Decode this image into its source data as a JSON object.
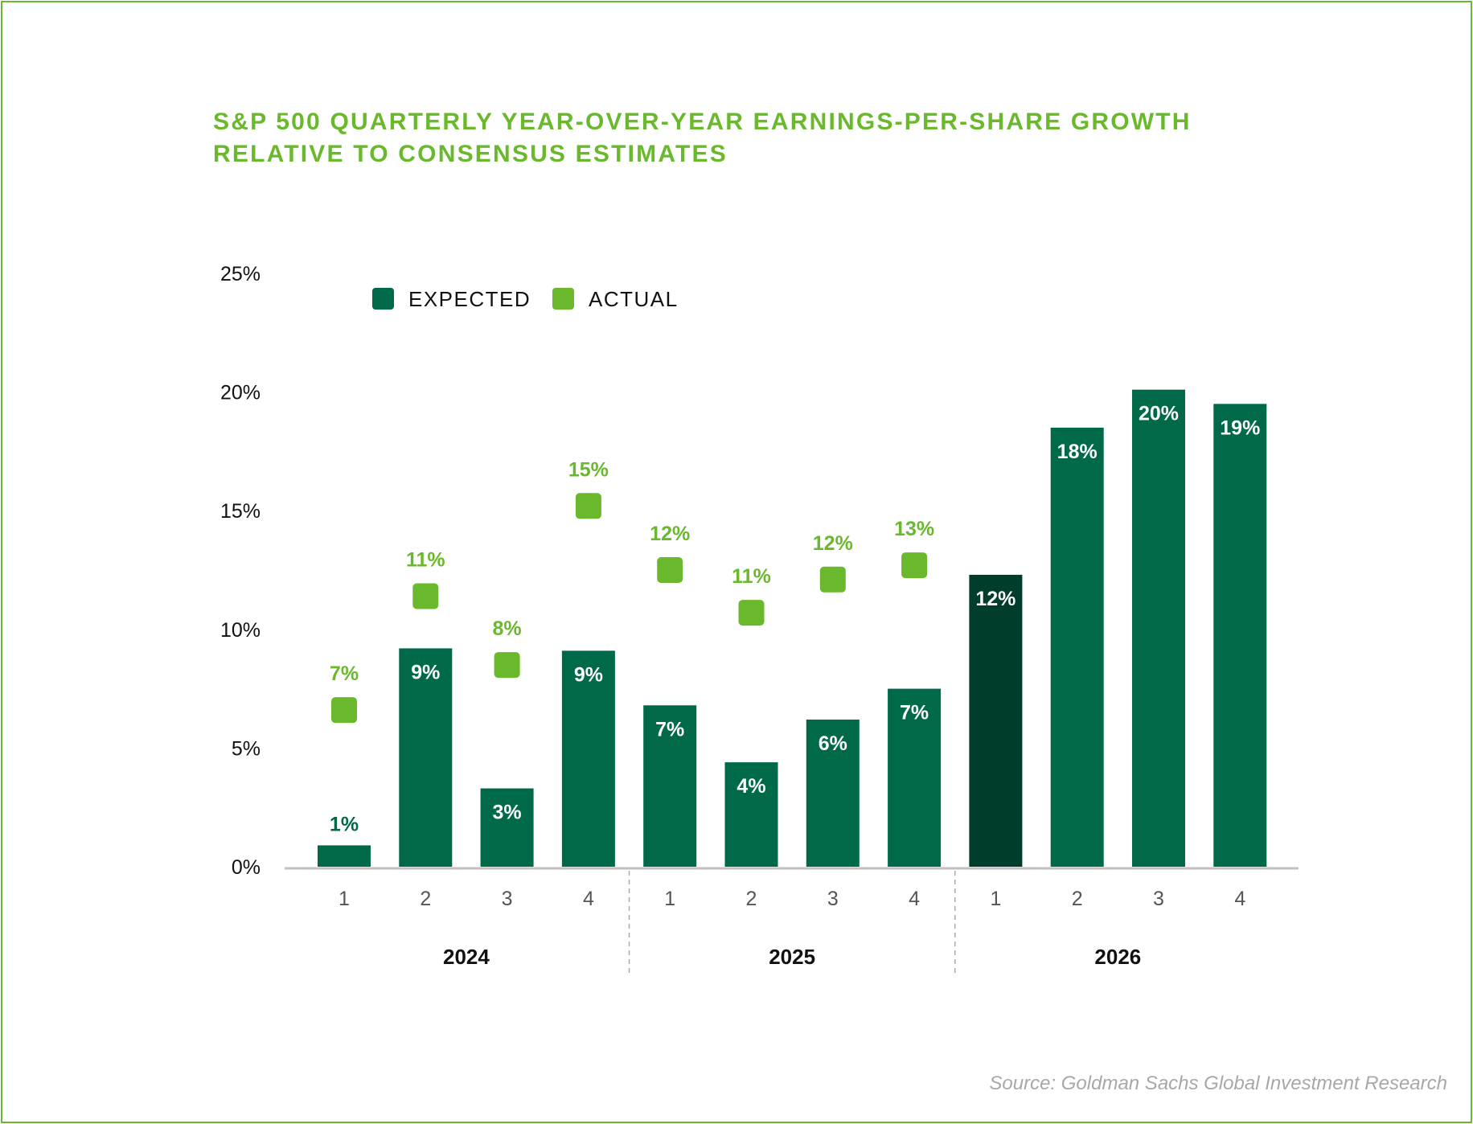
{
  "title_lines": [
    "S&P 500 QUARTERLY YEAR-OVER-YEAR EARNINGS-PER-SHARE GROWTH",
    "RELATIVE TO CONSENSUS ESTIMATES"
  ],
  "source": "Source: Goldman Sachs Global Investment Research",
  "colors": {
    "expected": "#00694a",
    "expected_highlight": "#003d2c",
    "actual": "#6ab82c",
    "axis": "#c0c0c0"
  },
  "chart_data": {
    "type": "bar",
    "title": "S&P 500 QUARTERLY YEAR-OVER-YEAR EARNINGS-PER-SHARE GROWTH RELATIVE TO CONSENSUS ESTIMATES",
    "ylim": [
      0,
      25
    ],
    "yticks": [
      "0%",
      "5%",
      "10%",
      "15%",
      "20%",
      "25%"
    ],
    "ytick_values": [
      0,
      5,
      10,
      15,
      20,
      25
    ],
    "categories": [
      "1",
      "2",
      "3",
      "4",
      "1",
      "2",
      "3",
      "4",
      "1",
      "2",
      "3",
      "4"
    ],
    "groups": [
      {
        "label": "2024",
        "start": 0,
        "end": 3
      },
      {
        "label": "2025",
        "start": 4,
        "end": 7
      },
      {
        "label": "2026",
        "start": 8,
        "end": 11
      }
    ],
    "legend_position": "top-left",
    "series": [
      {
        "name": "EXPECTED",
        "kind": "bar",
        "values": [
          0.9,
          9.2,
          3.3,
          9.1,
          6.8,
          4.4,
          6.2,
          7.5,
          12.3,
          18.5,
          20.1,
          19.5
        ],
        "labels": [
          "1%",
          "9%",
          "3%",
          "9%",
          "7%",
          "4%",
          "6%",
          "7%",
          "12%",
          "18%",
          "20%",
          "19%"
        ]
      },
      {
        "name": "ACTUAL",
        "kind": "marker",
        "values": [
          6.6,
          11.4,
          8.5,
          15.2,
          12.5,
          10.7,
          12.1,
          12.7,
          null,
          null,
          null,
          null
        ],
        "labels": [
          "7%",
          "11%",
          "8%",
          "15%",
          "12%",
          "11%",
          "12%",
          "13%",
          null,
          null,
          null,
          null
        ]
      }
    ],
    "highlighted_index": 8
  }
}
